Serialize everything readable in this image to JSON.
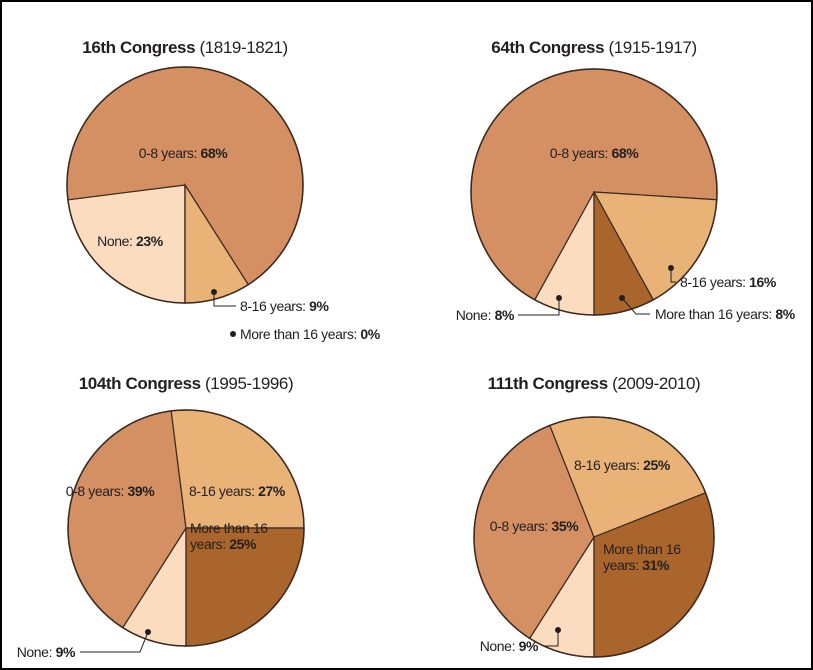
{
  "chart_data": [
    {
      "type": "pie",
      "title": "16th Congress",
      "subtitle": "(1819-1821)",
      "categories": [
        "None:",
        "0-8 years:",
        "8-16 years:",
        "More than 16 years:"
      ],
      "values": [
        23,
        68,
        9,
        0
      ],
      "value_labels": [
        "23%",
        "68%",
        "9%",
        "0%"
      ],
      "colors": [
        "#fbdcbf",
        "#d48f63",
        "#e9b277",
        "#a9652b"
      ]
    },
    {
      "type": "pie",
      "title": "64th Congress",
      "subtitle": "(1915-1917)",
      "categories": [
        "None:",
        "0-8 years:",
        "8-16 years:",
        "More than 16 years:"
      ],
      "values": [
        8,
        68,
        16,
        8
      ],
      "value_labels": [
        "8%",
        "68%",
        "16%",
        "8%"
      ],
      "colors": [
        "#fbdcbf",
        "#d48f63",
        "#e9b277",
        "#a9652b"
      ]
    },
    {
      "type": "pie",
      "title": "104th Congress",
      "subtitle": "(1995-1996)",
      "categories": [
        "None:",
        "0-8 years:",
        "8-16 years:",
        "More than 16 years:"
      ],
      "values": [
        9,
        39,
        27,
        25
      ],
      "value_labels": [
        "9%",
        "39%",
        "27%",
        "25%"
      ],
      "colors": [
        "#fbdcbf",
        "#d48f63",
        "#e9b277",
        "#a9652b"
      ]
    },
    {
      "type": "pie",
      "title": "111th Congress",
      "subtitle": "(2009-2010)",
      "categories": [
        "None:",
        "0-8 years:",
        "8-16 years:",
        "More than 16 years:"
      ],
      "values": [
        9,
        35,
        25,
        31
      ],
      "value_labels": [
        "9%",
        "35%",
        "25%",
        "31%"
      ],
      "colors": [
        "#fbdcbf",
        "#d48f63",
        "#e9b277",
        "#a9652b"
      ]
    }
  ]
}
